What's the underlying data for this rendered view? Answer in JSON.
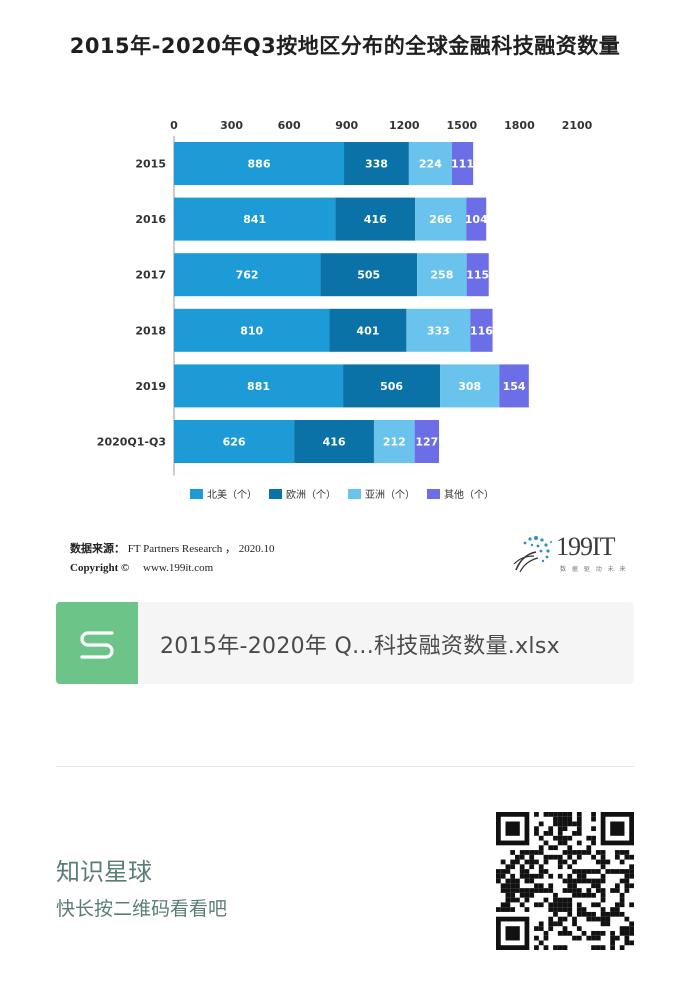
{
  "title": "2015年-2020年Q3按地区分布的全球金融科技融资数量",
  "chart_data": {
    "type": "bar",
    "orientation": "horizontal",
    "stacked": true,
    "categories": [
      "2015",
      "2016",
      "2017",
      "2018",
      "2019",
      "2020Q1-Q3"
    ],
    "series": [
      {
        "name": "北美（个）",
        "color": "#1c9bd6",
        "values": [
          886,
          841,
          762,
          810,
          881,
          626
        ]
      },
      {
        "name": "欧洲（个）",
        "color": "#0b72a8",
        "values": [
          338,
          416,
          505,
          401,
          506,
          416
        ]
      },
      {
        "name": "亚洲（个）",
        "color": "#69c3ec",
        "values": [
          224,
          266,
          258,
          333,
          308,
          212
        ]
      },
      {
        "name": "其他（个）",
        "color": "#6b6ee6",
        "values": [
          111,
          104,
          115,
          116,
          154,
          127
        ]
      }
    ],
    "xlim": [
      0,
      2100
    ],
    "xticks": [
      0,
      300,
      600,
      900,
      1200,
      1500,
      1800,
      2100
    ],
    "xaxis_position": "top",
    "legend_position": "bottom",
    "grid": false
  },
  "source": {
    "label": "数据来源：",
    "text": "FT Partners Research ， 2020.10",
    "copyright_label": "Copyright ©",
    "site": "www.199it.com"
  },
  "brand": {
    "name": "199IT",
    "tagline": "数 据 驱 动 未 来"
  },
  "file": {
    "icon": "spreadsheet-s-icon",
    "name": "2015年-2020年 Q...科技融资数量.xlsx"
  },
  "planet": {
    "title": "知识星球",
    "subtitle": "快长按二维码看看吧"
  }
}
